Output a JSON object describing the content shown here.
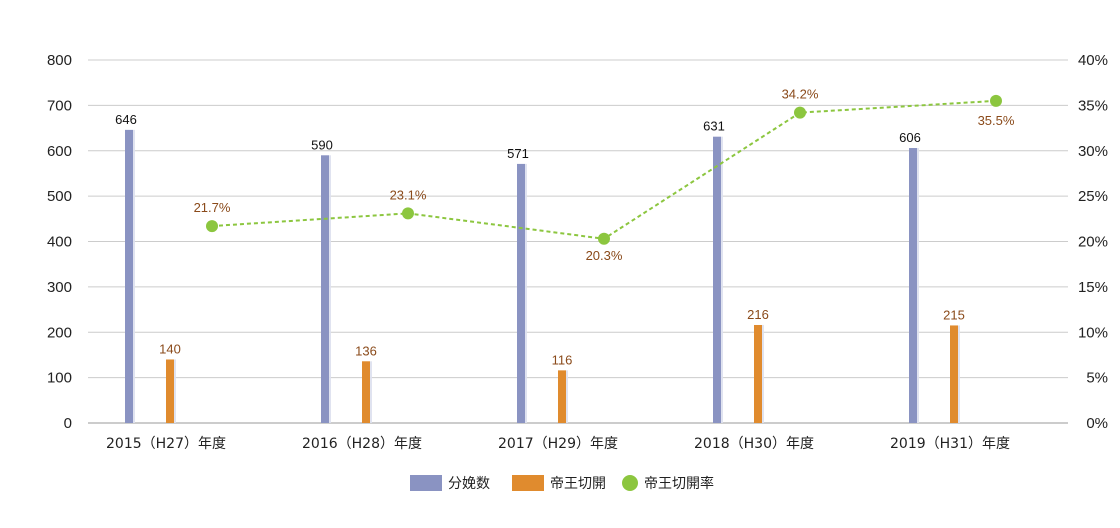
{
  "chart_data": {
    "type": "bar",
    "categories": [
      "2015（H27）年度",
      "2016（H28）年度",
      "2017（H29）年度",
      "2018（H30）年度",
      "2019（H31）年度"
    ],
    "series": [
      {
        "name": "分娩数",
        "type": "bar",
        "axis": "left",
        "values": [
          646,
          590,
          571,
          631,
          606
        ],
        "labels": [
          "646",
          "590",
          "571",
          "631",
          "606"
        ],
        "color": "#8a93c2"
      },
      {
        "name": "帝王切開",
        "type": "bar",
        "axis": "left",
        "values": [
          140,
          136,
          116,
          216,
          215
        ],
        "labels": [
          "140",
          "136",
          "116",
          "216",
          "215"
        ],
        "color": "#e08b2e"
      },
      {
        "name": "帝王切開率",
        "type": "line",
        "axis": "right",
        "values": [
          21.7,
          23.1,
          20.3,
          34.2,
          35.5
        ],
        "labels": [
          "21.7%",
          "23.1%",
          "20.3%",
          "34.2%",
          "35.5%"
        ],
        "color": "#8cc63f"
      }
    ],
    "y_left": {
      "lim": [
        0,
        800
      ],
      "ticks": [
        "0",
        "100",
        "200",
        "300",
        "400",
        "500",
        "600",
        "700",
        "800"
      ]
    },
    "y_right": {
      "lim": [
        0,
        40
      ],
      "ticks": [
        "0%",
        "5%",
        "10%",
        "15%",
        "20%",
        "25%",
        "30%",
        "35%",
        "40%"
      ]
    },
    "grid": true,
    "legend": "bottom-center"
  }
}
